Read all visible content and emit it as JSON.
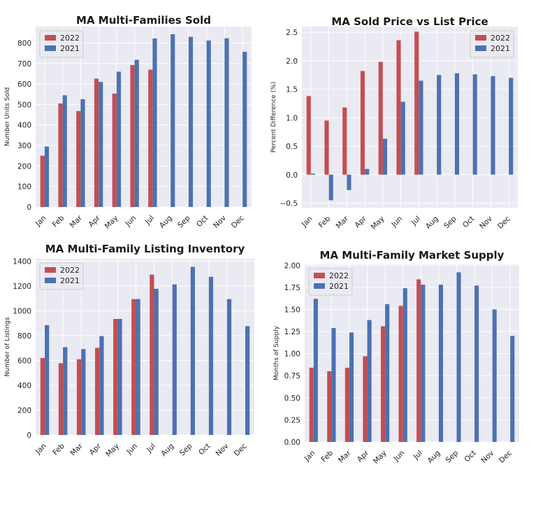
{
  "colors": {
    "2022": "#c44e52",
    "2021": "#4c72b0",
    "plot_bg": "#eaeaf2",
    "grid": "#ffffff"
  },
  "chart_data": [
    {
      "type": "bar",
      "title": "MA Multi-Families Sold",
      "xlabel": "",
      "ylabel": "Number Units Sold",
      "categories": [
        "Jan",
        "Feb",
        "Mar",
        "Apr",
        "May",
        "Jun",
        "Jul",
        "Aug",
        "Sep",
        "Oct",
        "Nov",
        "Dec"
      ],
      "ylim": [
        0,
        880
      ],
      "yticks": [
        0,
        100,
        200,
        300,
        400,
        500,
        600,
        700,
        800
      ],
      "tick_labels": [
        "0",
        "100",
        "200",
        "300",
        "400",
        "500",
        "600",
        "700",
        "800"
      ],
      "legend_position": "top-left",
      "series": [
        {
          "name": "2022",
          "values": [
            250,
            505,
            468,
            626,
            553,
            692,
            670,
            null,
            null,
            null,
            null,
            null
          ]
        },
        {
          "name": "2021",
          "values": [
            295,
            545,
            526,
            610,
            660,
            718,
            822,
            843,
            830,
            812,
            823,
            757
          ]
        }
      ]
    },
    {
      "type": "bar",
      "title": "MA Sold Price vs List Price",
      "xlabel": "",
      "ylabel": "Percent Difference (%)",
      "categories": [
        "Jan",
        "Feb",
        "Mar",
        "Apr",
        "May",
        "Jun",
        "Jul",
        "Aug",
        "Sep",
        "Oct",
        "Nov",
        "Dec"
      ],
      "ylim": [
        -0.58,
        2.6
      ],
      "yticks": [
        -0.5,
        0,
        0.5,
        1,
        1.5,
        2,
        2.5
      ],
      "tick_labels": [
        "−0.5",
        "0.0",
        "0.5",
        "1.0",
        "1.5",
        "2.0",
        "2.5"
      ],
      "legend_position": "top-right",
      "series": [
        {
          "name": "2022",
          "values": [
            1.38,
            0.95,
            1.18,
            1.82,
            1.98,
            2.36,
            2.51,
            null,
            null,
            null,
            null,
            null
          ]
        },
        {
          "name": "2021",
          "values": [
            0.02,
            -0.45,
            -0.27,
            0.1,
            0.63,
            1.28,
            1.65,
            1.75,
            1.78,
            1.76,
            1.73,
            1.7
          ]
        }
      ]
    },
    {
      "type": "bar",
      "title": "MA Multi-Family Listing Inventory",
      "xlabel": "",
      "ylabel": "Number of Listings",
      "categories": [
        "Jan",
        "Feb",
        "Mar",
        "Apr",
        "May",
        "Jun",
        "Jul",
        "Aug",
        "Sep",
        "Oct",
        "Nov",
        "Dec"
      ],
      "ylim": [
        0,
        1420
      ],
      "yticks": [
        0,
        200,
        400,
        600,
        800,
        1000,
        1200,
        1400
      ],
      "tick_labels": [
        "0",
        "200",
        "400",
        "600",
        "800",
        "1000",
        "1200",
        "1400"
      ],
      "legend_position": "top-left",
      "series": [
        {
          "name": "2022",
          "values": [
            620,
            578,
            610,
            702,
            935,
            1095,
            1292,
            null,
            null,
            null,
            null,
            null
          ]
        },
        {
          "name": "2021",
          "values": [
            885,
            708,
            692,
            797,
            935,
            1095,
            1178,
            1213,
            1355,
            1275,
            1095,
            877
          ]
        }
      ]
    },
    {
      "type": "bar",
      "title": "MA Multi-Family Market Supply",
      "xlabel": "",
      "ylabel": "Months of Supply",
      "categories": [
        "Jan",
        "Feb",
        "Mar",
        "Apr",
        "May",
        "Jun",
        "Jul",
        "Aug",
        "Sep",
        "Oct",
        "Nov",
        "Dec"
      ],
      "ylim": [
        0,
        2.01
      ],
      "yticks": [
        0,
        0.25,
        0.5,
        0.75,
        1,
        1.25,
        1.5,
        1.75,
        2
      ],
      "tick_labels": [
        "0.00",
        "0.25",
        "0.50",
        "0.75",
        "1.00",
        "1.25",
        "1.50",
        "1.75",
        "2.00"
      ],
      "legend_position": "top-left",
      "series": [
        {
          "name": "2022",
          "values": [
            0.84,
            0.8,
            0.84,
            0.97,
            1.31,
            1.54,
            1.84,
            null,
            null,
            null,
            null,
            null
          ]
        },
        {
          "name": "2021",
          "values": [
            1.62,
            1.29,
            1.24,
            1.38,
            1.56,
            1.74,
            1.78,
            1.78,
            1.92,
            1.77,
            1.5,
            1.2
          ]
        }
      ]
    }
  ]
}
